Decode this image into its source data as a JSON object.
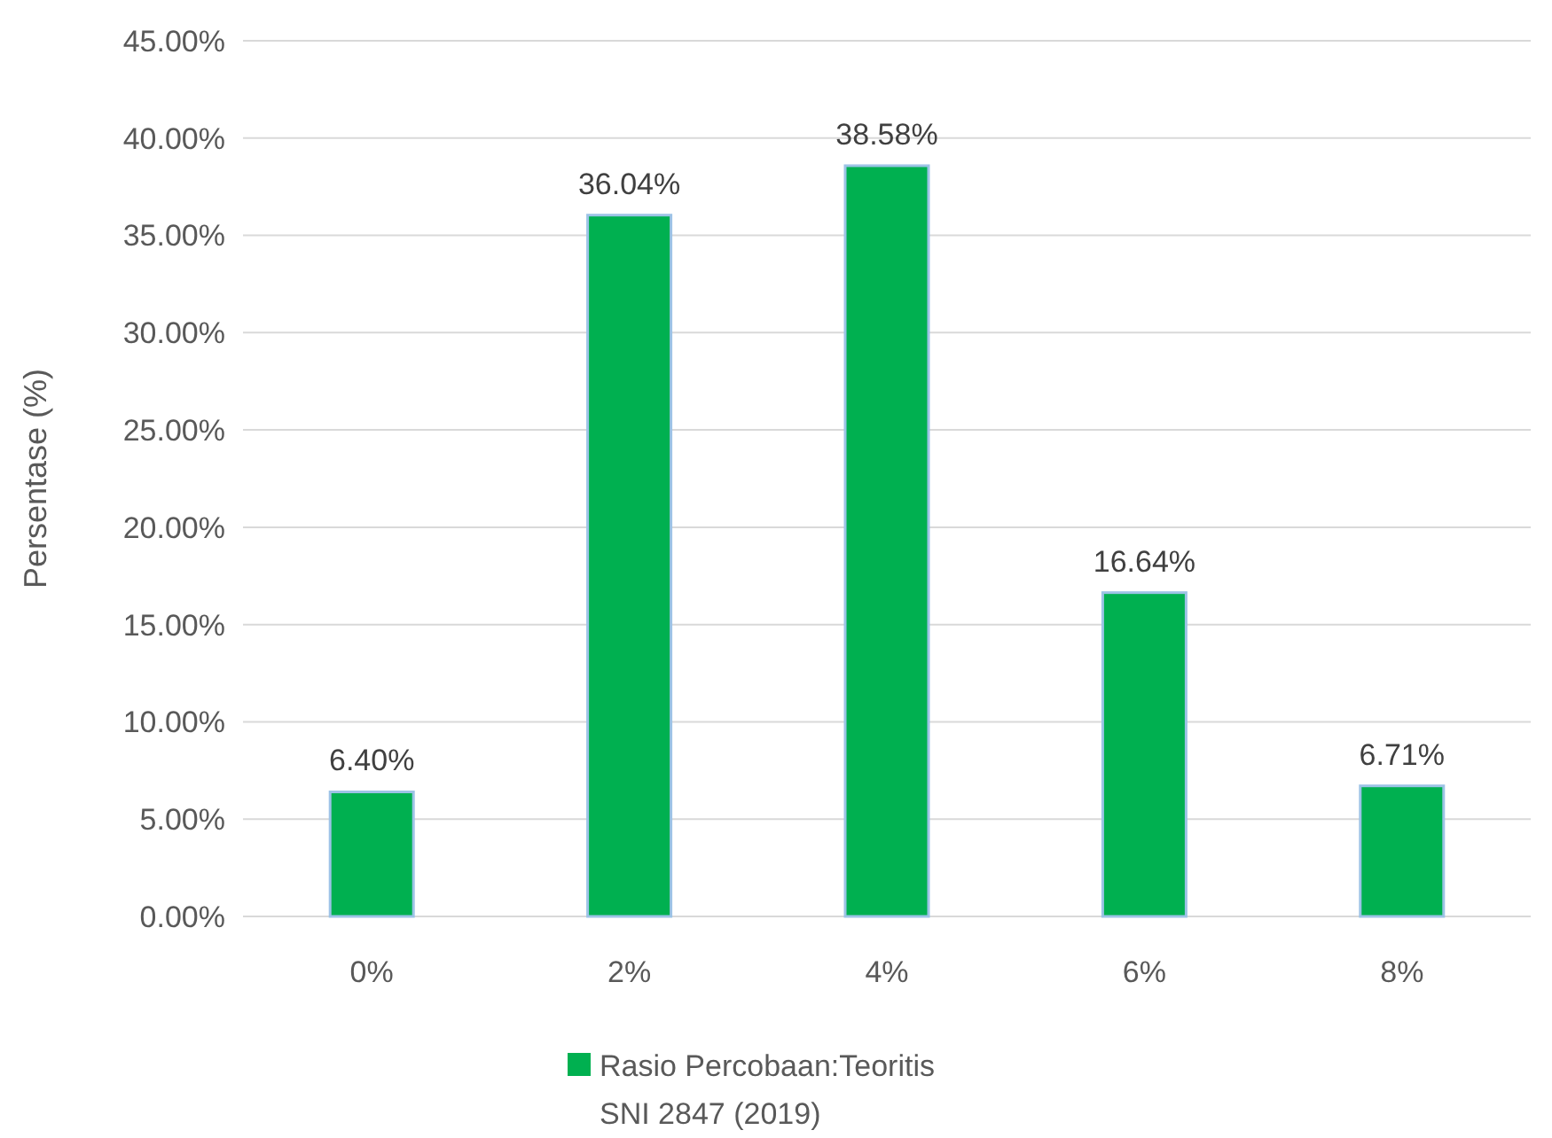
{
  "chart_data": {
    "type": "bar",
    "ylabel": "Persentase (%)",
    "categories": [
      "0%",
      "2%",
      "4%",
      "6%",
      "8%"
    ],
    "series": [
      {
        "name": "Rasio Percobaan:Teoritis SNI 2847 (2019)",
        "color": "#00b050",
        "values": [
          6.4,
          36.04,
          38.58,
          16.64,
          6.71
        ],
        "value_labels": [
          "6.40%",
          "36.04%",
          "38.58%",
          "16.64%",
          "6.71%"
        ]
      }
    ],
    "ylim": [
      0,
      45
    ],
    "yticks": [
      {
        "value": 0,
        "label": "0.00%"
      },
      {
        "value": 5,
        "label": "5.00%"
      },
      {
        "value": 10,
        "label": "10.00%"
      },
      {
        "value": 15,
        "label": "15.00%"
      },
      {
        "value": 20,
        "label": "20.00%"
      },
      {
        "value": 25,
        "label": "25.00%"
      },
      {
        "value": 30,
        "label": "30.00%"
      },
      {
        "value": 35,
        "label": "35.00%"
      },
      {
        "value": 40,
        "label": "40.00%"
      },
      {
        "value": 45,
        "label": "45.00%"
      }
    ],
    "grid": "y",
    "legend": "bottom"
  }
}
